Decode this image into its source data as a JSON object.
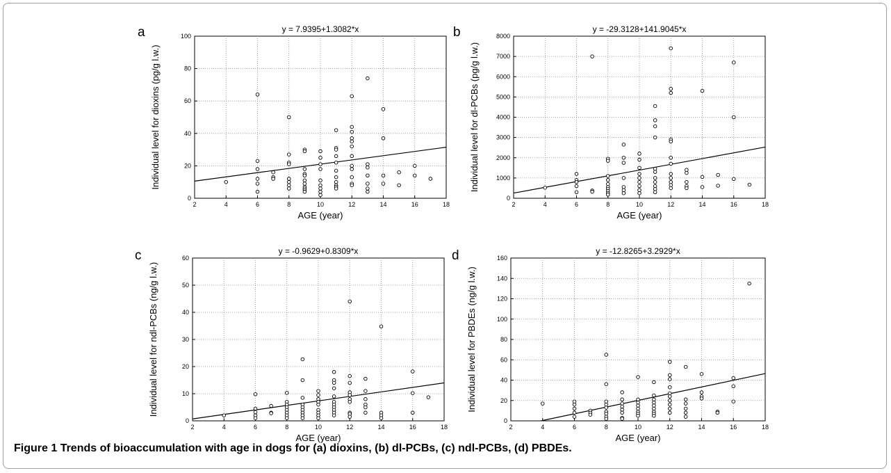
{
  "caption": {
    "label": "Figure 1",
    "text": "Trends of bioaccumulation with age in dogs for (a) dioxins, (b) dl-PCBs, (c) ndl-PCBs, (d) PBDEs."
  },
  "chart_data": [
    {
      "panel": "a",
      "type": "scatter",
      "title": "y = 7.9395+1.3082*x",
      "xlabel": "AGE (year)",
      "ylabel": "Individual level for dioxins (pg/g l.w.)",
      "xlim": [
        2,
        18
      ],
      "ylim": [
        0,
        100
      ],
      "xticks": [
        2,
        4,
        6,
        8,
        10,
        12,
        14,
        16,
        18
      ],
      "yticks": [
        0,
        20,
        40,
        60,
        80,
        100
      ],
      "regression": {
        "intercept": 7.9395,
        "slope": 1.3082
      },
      "points": [
        [
          4,
          10
        ],
        [
          6,
          64
        ],
        [
          6,
          23
        ],
        [
          6,
          18
        ],
        [
          6,
          12
        ],
        [
          6,
          9
        ],
        [
          6,
          4
        ],
        [
          7,
          16
        ],
        [
          7,
          13
        ],
        [
          7,
          12
        ],
        [
          8,
          50
        ],
        [
          8,
          27
        ],
        [
          8,
          22
        ],
        [
          8,
          21
        ],
        [
          8,
          12
        ],
        [
          8,
          10
        ],
        [
          8,
          8
        ],
        [
          8,
          6
        ],
        [
          9,
          30
        ],
        [
          9,
          29
        ],
        [
          9,
          18
        ],
        [
          9,
          15
        ],
        [
          9,
          14
        ],
        [
          9,
          11
        ],
        [
          9,
          9
        ],
        [
          9,
          7
        ],
        [
          9,
          6
        ],
        [
          9,
          5
        ],
        [
          9,
          4
        ],
        [
          10,
          29
        ],
        [
          10,
          25
        ],
        [
          10,
          21
        ],
        [
          10,
          18
        ],
        [
          10,
          11
        ],
        [
          10,
          8
        ],
        [
          10,
          6
        ],
        [
          10,
          4
        ],
        [
          10,
          2
        ],
        [
          11,
          42
        ],
        [
          11,
          31
        ],
        [
          11,
          30
        ],
        [
          11,
          26
        ],
        [
          11,
          22
        ],
        [
          11,
          17
        ],
        [
          11,
          13
        ],
        [
          11,
          10
        ],
        [
          11,
          8
        ],
        [
          11,
          7
        ],
        [
          11,
          6
        ],
        [
          12,
          63
        ],
        [
          12,
          44
        ],
        [
          12,
          41
        ],
        [
          12,
          37
        ],
        [
          12,
          35
        ],
        [
          12,
          32
        ],
        [
          12,
          26
        ],
        [
          12,
          20
        ],
        [
          12,
          18
        ],
        [
          12,
          13
        ],
        [
          12,
          9
        ],
        [
          12,
          8
        ],
        [
          13,
          74
        ],
        [
          13,
          21
        ],
        [
          13,
          19
        ],
        [
          13,
          14
        ],
        [
          13,
          9
        ],
        [
          13,
          6
        ],
        [
          13,
          4
        ],
        [
          14,
          55
        ],
        [
          14,
          37
        ],
        [
          14,
          14
        ],
        [
          14,
          9
        ],
        [
          15,
          16
        ],
        [
          15,
          8
        ],
        [
          16,
          20
        ],
        [
          16,
          14
        ],
        [
          17,
          12
        ]
      ]
    },
    {
      "panel": "b",
      "type": "scatter",
      "title": "y = -29.3128+141.9045*x",
      "xlabel": "AGE (year)",
      "ylabel": "Individual level for dl-PCBs  (pg/g l.w.)",
      "xlim": [
        2,
        18
      ],
      "ylim": [
        0,
        8000
      ],
      "xticks": [
        2,
        4,
        6,
        8,
        10,
        12,
        14,
        16,
        18
      ],
      "yticks": [
        0,
        1000,
        2000,
        3000,
        4000,
        5000,
        6000,
        7000,
        8000
      ],
      "regression": {
        "intercept": -29.3128,
        "slope": 141.9045
      },
      "points": [
        [
          4,
          520
        ],
        [
          6,
          1200
        ],
        [
          6,
          900
        ],
        [
          6,
          800
        ],
        [
          6,
          600
        ],
        [
          6,
          300
        ],
        [
          7,
          7000
        ],
        [
          7,
          380
        ],
        [
          7,
          320
        ],
        [
          8,
          1950
        ],
        [
          8,
          1850
        ],
        [
          8,
          1100
        ],
        [
          8,
          900
        ],
        [
          8,
          700
        ],
        [
          8,
          550
        ],
        [
          8,
          450
        ],
        [
          8,
          350
        ],
        [
          8,
          250
        ],
        [
          8,
          180
        ],
        [
          9,
          2650
        ],
        [
          9,
          2000
        ],
        [
          9,
          1750
        ],
        [
          9,
          1000
        ],
        [
          9,
          550
        ],
        [
          9,
          400
        ],
        [
          9,
          250
        ],
        [
          10,
          2200
        ],
        [
          10,
          1900
        ],
        [
          10,
          1500
        ],
        [
          10,
          1200
        ],
        [
          10,
          1000
        ],
        [
          10,
          800
        ],
        [
          10,
          600
        ],
        [
          10,
          400
        ],
        [
          10,
          250
        ],
        [
          11,
          4550
        ],
        [
          11,
          3850
        ],
        [
          11,
          3550
        ],
        [
          11,
          3000
        ],
        [
          11,
          1450
        ],
        [
          11,
          1300
        ],
        [
          11,
          1000
        ],
        [
          11,
          800
        ],
        [
          11,
          600
        ],
        [
          11,
          450
        ],
        [
          11,
          300
        ],
        [
          12,
          7400
        ],
        [
          12,
          5400
        ],
        [
          12,
          5200
        ],
        [
          12,
          2900
        ],
        [
          12,
          2800
        ],
        [
          12,
          2000
        ],
        [
          12,
          1700
        ],
        [
          12,
          1200
        ],
        [
          12,
          1000
        ],
        [
          12,
          800
        ],
        [
          12,
          650
        ],
        [
          12,
          500
        ],
        [
          13,
          1400
        ],
        [
          13,
          1250
        ],
        [
          13,
          800
        ],
        [
          13,
          600
        ],
        [
          13,
          500
        ],
        [
          14,
          5300
        ],
        [
          14,
          1050
        ],
        [
          14,
          550
        ],
        [
          15,
          1150
        ],
        [
          15,
          620
        ],
        [
          16,
          6700
        ],
        [
          16,
          4000
        ],
        [
          16,
          950
        ],
        [
          17,
          670
        ]
      ]
    },
    {
      "panel": "c",
      "type": "scatter",
      "title": "y = -0.9629+0.8309*x",
      "xlabel": "AGE (year)",
      "ylabel": "Individual level for ndl-PCBs  (ng/g l.w.)",
      "xlim": [
        2,
        18
      ],
      "ylim": [
        0,
        60
      ],
      "xticks": [
        2,
        4,
        6,
        8,
        10,
        12,
        14,
        16,
        18
      ],
      "yticks": [
        0,
        10,
        20,
        30,
        40,
        50,
        60
      ],
      "regression": {
        "intercept": -0.9629,
        "slope": 0.8309
      },
      "points": [
        [
          4,
          2
        ],
        [
          6,
          9.8
        ],
        [
          6,
          4.5
        ],
        [
          6,
          3.2
        ],
        [
          6,
          2
        ],
        [
          6,
          1
        ],
        [
          7,
          5.5
        ],
        [
          7,
          3
        ],
        [
          7,
          2.8
        ],
        [
          8,
          10.3
        ],
        [
          8,
          7
        ],
        [
          8,
          6
        ],
        [
          8,
          5
        ],
        [
          8,
          4
        ],
        [
          8,
          3
        ],
        [
          8,
          2
        ],
        [
          8,
          1
        ],
        [
          9,
          22.7
        ],
        [
          9,
          15
        ],
        [
          9,
          8.5
        ],
        [
          9,
          6
        ],
        [
          9,
          5
        ],
        [
          9,
          4
        ],
        [
          9,
          3
        ],
        [
          9,
          2
        ],
        [
          9,
          1
        ],
        [
          10,
          11
        ],
        [
          10,
          9.5
        ],
        [
          10,
          8
        ],
        [
          10,
          7
        ],
        [
          10,
          6
        ],
        [
          10,
          4
        ],
        [
          10,
          3
        ],
        [
          10,
          2
        ],
        [
          10,
          1
        ],
        [
          11,
          18
        ],
        [
          11,
          15
        ],
        [
          11,
          14
        ],
        [
          11,
          12
        ],
        [
          11,
          9
        ],
        [
          11,
          7
        ],
        [
          11,
          6
        ],
        [
          11,
          5
        ],
        [
          11,
          4
        ],
        [
          11,
          3
        ],
        [
          11,
          2
        ],
        [
          12,
          44
        ],
        [
          12,
          16.5
        ],
        [
          12,
          14
        ],
        [
          12,
          10.5
        ],
        [
          12,
          9.5
        ],
        [
          12,
          8
        ],
        [
          12,
          7
        ],
        [
          12,
          3
        ],
        [
          12,
          2.5
        ],
        [
          12,
          1.5
        ],
        [
          13,
          15.5
        ],
        [
          13,
          11
        ],
        [
          13,
          8
        ],
        [
          13,
          6
        ],
        [
          13,
          5
        ],
        [
          13,
          3
        ],
        [
          14,
          34.8
        ],
        [
          14,
          3
        ],
        [
          14,
          2
        ],
        [
          14,
          1
        ],
        [
          16,
          18.2
        ],
        [
          16,
          10.2
        ],
        [
          16,
          3
        ],
        [
          17,
          8.7
        ]
      ]
    },
    {
      "panel": "d",
      "type": "scatter",
      "title": "y = -12.8265+3.2929*x",
      "xlabel": "AGE (year)",
      "ylabel": "Individual level for PBDEs (ng/g l.w.)",
      "xlim": [
        2,
        18
      ],
      "ylim": [
        0,
        160
      ],
      "xticks": [
        2,
        4,
        6,
        8,
        10,
        12,
        14,
        16,
        18
      ],
      "yticks": [
        0,
        20,
        40,
        60,
        80,
        100,
        120,
        140,
        160
      ],
      "regression": {
        "intercept": -12.8265,
        "slope": 3.2929
      },
      "points": [
        [
          4,
          17
        ],
        [
          6,
          19
        ],
        [
          6,
          16
        ],
        [
          6,
          12
        ],
        [
          6,
          8
        ],
        [
          6,
          4
        ],
        [
          7,
          10
        ],
        [
          7,
          8
        ],
        [
          7,
          6
        ],
        [
          8,
          65
        ],
        [
          8,
          36
        ],
        [
          8,
          19
        ],
        [
          8,
          16
        ],
        [
          8,
          13
        ],
        [
          8,
          9
        ],
        [
          8,
          7
        ],
        [
          8,
          4
        ],
        [
          8,
          2
        ],
        [
          9,
          28
        ],
        [
          9,
          21
        ],
        [
          9,
          17
        ],
        [
          9,
          14
        ],
        [
          9,
          11
        ],
        [
          9,
          8
        ],
        [
          9,
          3
        ],
        [
          9,
          2
        ],
        [
          10,
          43
        ],
        [
          10,
          21
        ],
        [
          10,
          18
        ],
        [
          10,
          15
        ],
        [
          10,
          12
        ],
        [
          10,
          9
        ],
        [
          10,
          7
        ],
        [
          10,
          5
        ],
        [
          11,
          38
        ],
        [
          11,
          25
        ],
        [
          11,
          21
        ],
        [
          11,
          18
        ],
        [
          11,
          15
        ],
        [
          11,
          12
        ],
        [
          11,
          9
        ],
        [
          11,
          7
        ],
        [
          11,
          5
        ],
        [
          12,
          58
        ],
        [
          12,
          45
        ],
        [
          12,
          41
        ],
        [
          12,
          33
        ],
        [
          12,
          27
        ],
        [
          12,
          24
        ],
        [
          12,
          20
        ],
        [
          12,
          16
        ],
        [
          12,
          12
        ],
        [
          12,
          8
        ],
        [
          13,
          53
        ],
        [
          13,
          21
        ],
        [
          13,
          17
        ],
        [
          13,
          12
        ],
        [
          13,
          8
        ],
        [
          13,
          4
        ],
        [
          14,
          46
        ],
        [
          14,
          28
        ],
        [
          14,
          24
        ],
        [
          14,
          22
        ],
        [
          15,
          9
        ],
        [
          15,
          8
        ],
        [
          16,
          42
        ],
        [
          16,
          34
        ],
        [
          16,
          19
        ],
        [
          17,
          135
        ]
      ]
    }
  ]
}
